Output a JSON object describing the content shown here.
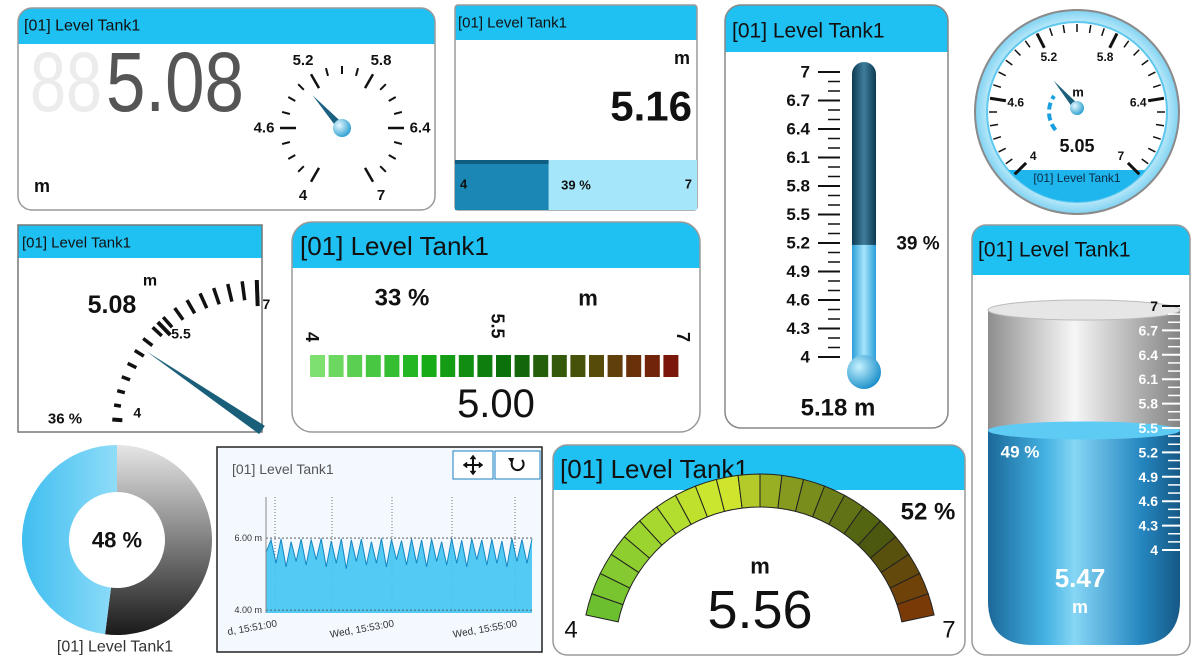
{
  "digital_gauge": {
    "title": "[01] Level Tank1",
    "ghost": "88",
    "value": 5.08,
    "unit": "m",
    "ticks": [
      4,
      4.6,
      5.2,
      5.8,
      6.4,
      7
    ]
  },
  "bar_display": {
    "title": "[01] Level Tank1",
    "unit": "m",
    "value": 5.16,
    "ticks": [
      4,
      7
    ],
    "percent": {
      "value": 39,
      "label": "39 %"
    }
  },
  "thermometer": {
    "title": "[01] Level Tank1",
    "ticks": [
      7,
      6.7,
      6.4,
      6.1,
      5.8,
      5.5,
      5.2,
      4.9,
      4.6,
      4.3,
      4
    ],
    "percent": {
      "value": 39,
      "label": "39 %"
    },
    "value": {
      "value": 5.18,
      "label": "5.18 m"
    }
  },
  "round_gauge": {
    "ticks": [
      4,
      4.6,
      5.2,
      5.8,
      6.4,
      7
    ],
    "unit": "m",
    "value": 5.05,
    "caption": "[01] Level Tank1"
  },
  "arc_gauge": {
    "title": "[01] Level Tank1",
    "unit": "m",
    "value": 5.08,
    "ticks": [
      4,
      5.5,
      7
    ],
    "percent": {
      "value": 36,
      "label": "36 %"
    }
  },
  "led_bar": {
    "title": "[01] Level Tank1",
    "percent": {
      "value": 33,
      "label": "33 %"
    },
    "unit": "m",
    "ticks": [
      4,
      5.5,
      7
    ],
    "value": {
      "value": 5,
      "label": "5.00"
    }
  },
  "tank": {
    "title": "[01] Level Tank1",
    "ticks": [
      7,
      6.7,
      6.4,
      6.1,
      5.8,
      5.5,
      5.2,
      4.9,
      4.6,
      4.3,
      4
    ],
    "percent": {
      "value": 49,
      "label": "49 %"
    },
    "value": 5.47,
    "unit": "m"
  },
  "donut": {
    "percent": {
      "value": 48,
      "label": "48 %"
    },
    "caption": "[01] Level Tank1"
  },
  "trend": {
    "title": "[01] Level Tank1",
    "ylim": [
      3.92,
      7.14
    ],
    "yticks": [
      {
        "value": 6,
        "label": "6.00 m"
      },
      {
        "value": 4,
        "label": "4.00 m"
      }
    ],
    "xticks": [
      "d, 15:51:00",
      "Wed, 15:53:00",
      "Wed, 15:55:00"
    ],
    "values": [
      5.6,
      5.95,
      5.3,
      5.98,
      5.2,
      5.9,
      5.35,
      5.97,
      5.25,
      5.96,
      5.4,
      5.99,
      5.2,
      5.92,
      5.3,
      5.98,
      5.15,
      5.95,
      5.35,
      5.97,
      5.25,
      5.9,
      5.3,
      5.99,
      5.2,
      5.96,
      5.4,
      5.93,
      5.25,
      5.98,
      5.3,
      5.95,
      5.2,
      5.97,
      5.35,
      5.9,
      5.25,
      5.99,
      5.3,
      5.94,
      5.2,
      5.98,
      5.4,
      5.95,
      5.25,
      5.97,
      5.3,
      5.92,
      5.2,
      5.99,
      5.35,
      5.96,
      5.3,
      5.98
    ]
  },
  "semicircle_gauge": {
    "title": "[01] Level Tank1",
    "percent": {
      "value": 52,
      "label": "52 %"
    },
    "unit": "m",
    "value": 5.56,
    "ticks": [
      4,
      7
    ]
  }
}
